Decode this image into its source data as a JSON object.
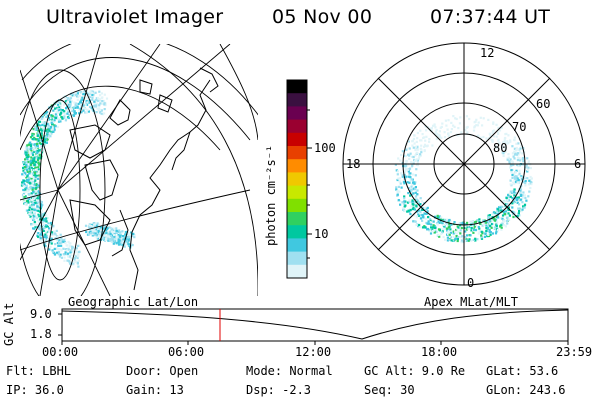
{
  "header": {
    "title": "Ultraviolet Imager",
    "date": "05 Nov 00",
    "time": "07:37:44 UT"
  },
  "colorbar": {
    "label": "photon cm⁻²s⁻¹",
    "ticks": [
      "100",
      "10"
    ],
    "colors": [
      "#000000",
      "#3a1040",
      "#6a0050",
      "#9a0030",
      "#c80000",
      "#e84000",
      "#ff8c00",
      "#f0c800",
      "#c8e800",
      "#80e000",
      "#30d060",
      "#00c8a0",
      "#40c8e0",
      "#a0e0f0",
      "#e0f4f8"
    ]
  },
  "left_map": {
    "caption": "Geographic Lat/Lon"
  },
  "right_polar": {
    "caption": "Apex MLat/MLT",
    "mlt_labels": {
      "top": "12",
      "left": "18",
      "right": "6",
      "bottom": "0"
    },
    "lat_labels": [
      "60",
      "70",
      "80"
    ]
  },
  "timeline": {
    "ylabel": "GC Alt",
    "ytick_top": "9.0",
    "ytick_bottom": "1.8",
    "xticks": [
      "00:00",
      "06:00",
      "12:00",
      "18:00",
      "23:59"
    ],
    "marker_time": "07:37"
  },
  "info": {
    "flt": "Flt: LBHL",
    "ip": "IP: 36.0",
    "door": "Door: Open",
    "gain": "Gain: 13",
    "mode": "Mode: Normal",
    "dsp": "Dsp:    -2.3",
    "gcalt": "GC Alt: 9.0 Re",
    "seq": "Seq: 30",
    "glat": "GLat:  53.6",
    "glon": "GLon: 243.6"
  }
}
